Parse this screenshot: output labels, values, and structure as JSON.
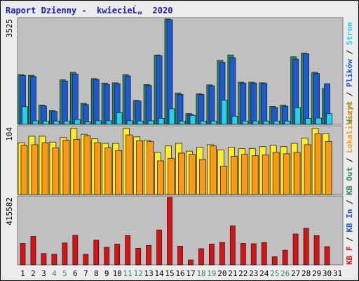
{
  "title": "Raport Dzienny -  kwiecieĹ„  2020",
  "chart_data": [
    {
      "type": "bar",
      "panel": "top",
      "ylabel": "3525",
      "ymax": 3525,
      "series": [
        {
          "name": "Wizyt",
          "color": "#2e8b57",
          "values": [
            1660,
            1640,
            640,
            460,
            1490,
            1740,
            700,
            1530,
            1380,
            1390,
            1660,
            800,
            1330,
            2320,
            3525,
            1050,
            360,
            1020,
            1320,
            2140,
            2320,
            1410,
            1410,
            1390,
            600,
            640,
            2260,
            2380,
            1740,
            1200,
            0
          ]
        },
        {
          "name": "Plików",
          "color": "#1a5ad8",
          "values": [
            1640,
            1600,
            620,
            430,
            1450,
            1680,
            660,
            1500,
            1340,
            1360,
            1620,
            780,
            1300,
            2300,
            3500,
            1000,
            330,
            1000,
            1290,
            2080,
            2230,
            1380,
            1380,
            1370,
            560,
            610,
            2180,
            2360,
            1700,
            1360,
            0
          ]
        },
        {
          "name": "Stron",
          "color": "#22d3f0",
          "values": [
            590,
            120,
            110,
            110,
            110,
            160,
            80,
            120,
            120,
            390,
            120,
            110,
            120,
            200,
            520,
            110,
            300,
            110,
            110,
            810,
            270,
            110,
            110,
            110,
            110,
            110,
            560,
            200,
            210,
            360,
            0
          ]
        }
      ]
    },
    {
      "type": "bar",
      "panel": "middle",
      "ylabel": "104",
      "ymax": 104,
      "series": [
        {
          "name": "Lokalizacje",
          "color": "#ffee22",
          "values": [
            80,
            90,
            90,
            81,
            88,
            102,
            93,
            86,
            79,
            79,
            102,
            89,
            84,
            65,
            75,
            79,
            67,
            73,
            77,
            69,
            73,
            71,
            71,
            74,
            76,
            74,
            79,
            87,
            102,
            94,
            0
          ]
        },
        {
          "name": "KB Out",
          "color": "#ff9a10",
          "values": [
            76,
            77,
            80,
            72,
            84,
            85,
            91,
            80,
            72,
            68,
            92,
            83,
            82,
            52,
            56,
            64,
            62,
            54,
            75,
            44,
            59,
            62,
            60,
            61,
            65,
            63,
            65,
            77,
            94,
            82,
            0
          ]
        }
      ]
    },
    {
      "type": "bar",
      "panel": "bottom",
      "ylabel": "415582",
      "ymax": 415582,
      "series": [
        {
          "name": "KB F",
          "color": "#e01010",
          "values": [
            132000,
            175000,
            70000,
            65000,
            135000,
            182000,
            65000,
            152000,
            108000,
            128000,
            180000,
            102000,
            120000,
            215000,
            415582,
            115000,
            30000,
            100000,
            128000,
            138000,
            240000,
            132000,
            130000,
            138000,
            50000,
            90000,
            190000,
            225000,
            180000,
            112000,
            0
          ]
        }
      ]
    }
  ],
  "x_labels": [
    "1",
    "2",
    "3",
    "4",
    "5",
    "6",
    "7",
    "8",
    "9",
    "10",
    "11",
    "12",
    "13",
    "14",
    "15",
    "16",
    "17",
    "18",
    "19",
    "20",
    "21",
    "22",
    "23",
    "24",
    "25",
    "26",
    "27",
    "28",
    "29",
    "30",
    "31"
  ],
  "weekend_days": [
    4,
    5,
    11,
    12,
    18,
    19,
    25,
    26
  ],
  "colors": {
    "weekday_label": "#000000",
    "weekend_label": "#2e8b57",
    "panel_bg": "#c0c0c0",
    "title": "#1a1ab8"
  },
  "right_legend_top": [
    {
      "text": "Wizyt",
      "color": "#2e8b57"
    },
    {
      "text": " / ",
      "color": "#000000"
    },
    {
      "text": "Plików",
      "color": "#1a5ad8"
    },
    {
      "text": " / ",
      "color": "#000000"
    },
    {
      "text": "Stron",
      "color": "#22d3f0"
    }
  ],
  "right_legend_bottom": [
    {
      "text": "KB F",
      "color": "#e01010"
    },
    {
      "text": " / ",
      "color": "#000000"
    },
    {
      "text": "KB In",
      "color": "#1a5ad8"
    },
    {
      "text": " / ",
      "color": "#000000"
    },
    {
      "text": "KB Out",
      "color": "#2e8b57"
    },
    {
      "text": " / ",
      "color": "#000000"
    },
    {
      "text": "Lokalizacje",
      "color": "#ff9a10"
    }
  ]
}
